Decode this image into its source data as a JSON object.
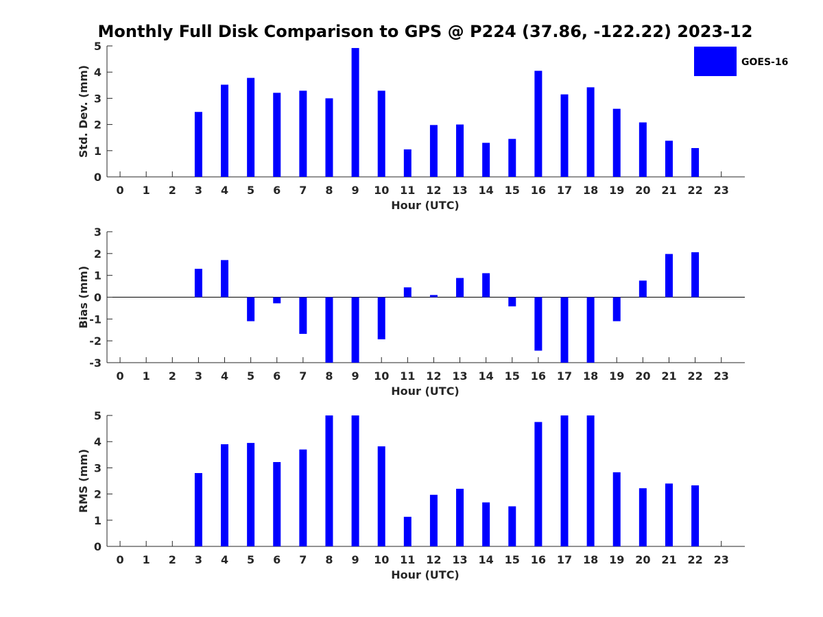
{
  "figure_title": "Monthly Full Disk Comparison to GPS @ P224 (37.86, -122.22) 2023-12",
  "legend": {
    "label": "GOES-16",
    "color": "#0000ff"
  },
  "chart_data": [
    {
      "type": "bar",
      "name": "std-dev",
      "xlabel": "Hour (UTC)",
      "ylabel": "Std. Dev. (mm)",
      "x": [
        0,
        1,
        2,
        3,
        4,
        5,
        6,
        7,
        8,
        9,
        10,
        11,
        12,
        13,
        14,
        15,
        16,
        17,
        18,
        19,
        20,
        21,
        22,
        23
      ],
      "xticks": [
        "0",
        "1",
        "2",
        "3",
        "4",
        "5",
        "6",
        "7",
        "8",
        "9",
        "10",
        "11",
        "12",
        "13",
        "14",
        "15",
        "16",
        "17",
        "18",
        "19",
        "20",
        "21",
        "22",
        "23"
      ],
      "ylim": [
        0,
        5
      ],
      "yticks": [
        "0",
        "1",
        "2",
        "3",
        "4",
        "5"
      ],
      "values": [
        null,
        null,
        null,
        2.48,
        3.52,
        3.78,
        3.21,
        3.29,
        3.0,
        4.92,
        3.29,
        1.05,
        1.98,
        2.0,
        1.3,
        1.45,
        4.05,
        3.15,
        3.42,
        2.6,
        2.08,
        1.38,
        1.1,
        null
      ],
      "color": "#0000ff"
    },
    {
      "type": "bar",
      "name": "bias",
      "xlabel": "Hour (UTC)",
      "ylabel": "Bias (mm)",
      "x": [
        0,
        1,
        2,
        3,
        4,
        5,
        6,
        7,
        8,
        9,
        10,
        11,
        12,
        13,
        14,
        15,
        16,
        17,
        18,
        19,
        20,
        21,
        22,
        23
      ],
      "xticks": [
        "0",
        "1",
        "2",
        "3",
        "4",
        "5",
        "6",
        "7",
        "8",
        "9",
        "10",
        "11",
        "12",
        "13",
        "14",
        "15",
        "16",
        "17",
        "18",
        "19",
        "20",
        "21",
        "22",
        "23"
      ],
      "ylim": [
        -3,
        3
      ],
      "yticks": [
        "-3",
        "-2",
        "-1",
        "0",
        "1",
        "2",
        "3"
      ],
      "values": [
        null,
        null,
        null,
        1.3,
        1.7,
        -1.1,
        -0.28,
        -1.68,
        -3.0,
        -3.0,
        -1.93,
        0.45,
        0.1,
        0.88,
        1.1,
        -0.42,
        -2.45,
        -3.0,
        -3.0,
        -1.1,
        0.76,
        1.98,
        2.06,
        null
      ],
      "color": "#0000ff"
    },
    {
      "type": "bar",
      "name": "rms",
      "xlabel": "Hour (UTC)",
      "ylabel": "RMS (mm)",
      "x": [
        0,
        1,
        2,
        3,
        4,
        5,
        6,
        7,
        8,
        9,
        10,
        11,
        12,
        13,
        14,
        15,
        16,
        17,
        18,
        19,
        20,
        21,
        22,
        23
      ],
      "xticks": [
        "0",
        "1",
        "2",
        "3",
        "4",
        "5",
        "6",
        "7",
        "8",
        "9",
        "10",
        "11",
        "12",
        "13",
        "14",
        "15",
        "16",
        "17",
        "18",
        "19",
        "20",
        "21",
        "22",
        "23"
      ],
      "ylim": [
        0,
        5
      ],
      "yticks": [
        "0",
        "1",
        "2",
        "3",
        "4",
        "5"
      ],
      "values": [
        null,
        null,
        null,
        2.8,
        3.9,
        3.95,
        3.22,
        3.7,
        5.0,
        5.0,
        3.82,
        1.13,
        1.97,
        2.2,
        1.68,
        1.53,
        4.75,
        5.0,
        5.0,
        2.83,
        2.22,
        2.4,
        2.33,
        null
      ],
      "color": "#0000ff"
    }
  ]
}
